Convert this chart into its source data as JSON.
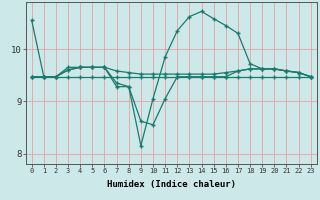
{
  "xlabel": "Humidex (Indice chaleur)",
  "background_color": "#cce8e8",
  "grid_color": "#e8a0a0",
  "line_color": "#1a7a6e",
  "xlim": [
    -0.5,
    23.5
  ],
  "ylim": [
    7.8,
    10.9
  ],
  "yticks": [
    8,
    9,
    10
  ],
  "xticks": [
    0,
    1,
    2,
    3,
    4,
    5,
    6,
    7,
    8,
    9,
    10,
    11,
    12,
    13,
    14,
    15,
    16,
    17,
    18,
    19,
    20,
    21,
    22,
    23
  ],
  "lines": [
    {
      "x": [
        0,
        1,
        2,
        3,
        4,
        5,
        6,
        7,
        8,
        9,
        10,
        11,
        12,
        13,
        14,
        15,
        16,
        17,
        18,
        19,
        20,
        21,
        22,
        23
      ],
      "y": [
        10.55,
        9.47,
        9.47,
        9.65,
        9.65,
        9.65,
        9.65,
        9.58,
        9.55,
        9.52,
        9.52,
        9.52,
        9.52,
        9.52,
        9.52,
        9.52,
        9.55,
        9.58,
        9.62,
        9.62,
        9.62,
        9.58,
        9.55,
        9.47
      ]
    },
    {
      "x": [
        0,
        1,
        2,
        3,
        4,
        5,
        6,
        7,
        8,
        9,
        10,
        11,
        12,
        13,
        14,
        15,
        16,
        17,
        18,
        19,
        20,
        21,
        22,
        23
      ],
      "y": [
        9.47,
        9.47,
        9.47,
        9.47,
        9.47,
        9.47,
        9.47,
        9.47,
        9.47,
        9.47,
        9.47,
        9.47,
        9.47,
        9.47,
        9.47,
        9.47,
        9.47,
        9.47,
        9.47,
        9.47,
        9.47,
        9.47,
        9.47,
        9.47
      ]
    },
    {
      "x": [
        0,
        1,
        2,
        3,
        4,
        5,
        6,
        7,
        8,
        9,
        10,
        11,
        12,
        13,
        14,
        15,
        16,
        17,
        18,
        19,
        20,
        21,
        22,
        23
      ],
      "y": [
        9.47,
        9.47,
        9.47,
        9.6,
        9.65,
        9.65,
        9.65,
        9.35,
        9.28,
        8.15,
        9.05,
        9.85,
        10.35,
        10.62,
        10.72,
        10.58,
        10.45,
        10.3,
        9.72,
        9.62,
        9.62,
        9.58,
        9.55,
        9.47
      ]
    },
    {
      "x": [
        0,
        1,
        2,
        3,
        4,
        5,
        6,
        7,
        8,
        9,
        10,
        11,
        12,
        13,
        14,
        15,
        16,
        17,
        18,
        19,
        20,
        21,
        22,
        23
      ],
      "y": [
        9.47,
        9.47,
        9.47,
        9.6,
        9.65,
        9.65,
        9.65,
        9.28,
        9.28,
        8.62,
        8.55,
        9.05,
        9.47,
        9.47,
        9.47,
        9.47,
        9.47,
        9.58,
        9.62,
        9.62,
        9.62,
        9.58,
        9.55,
        9.47
      ]
    }
  ]
}
